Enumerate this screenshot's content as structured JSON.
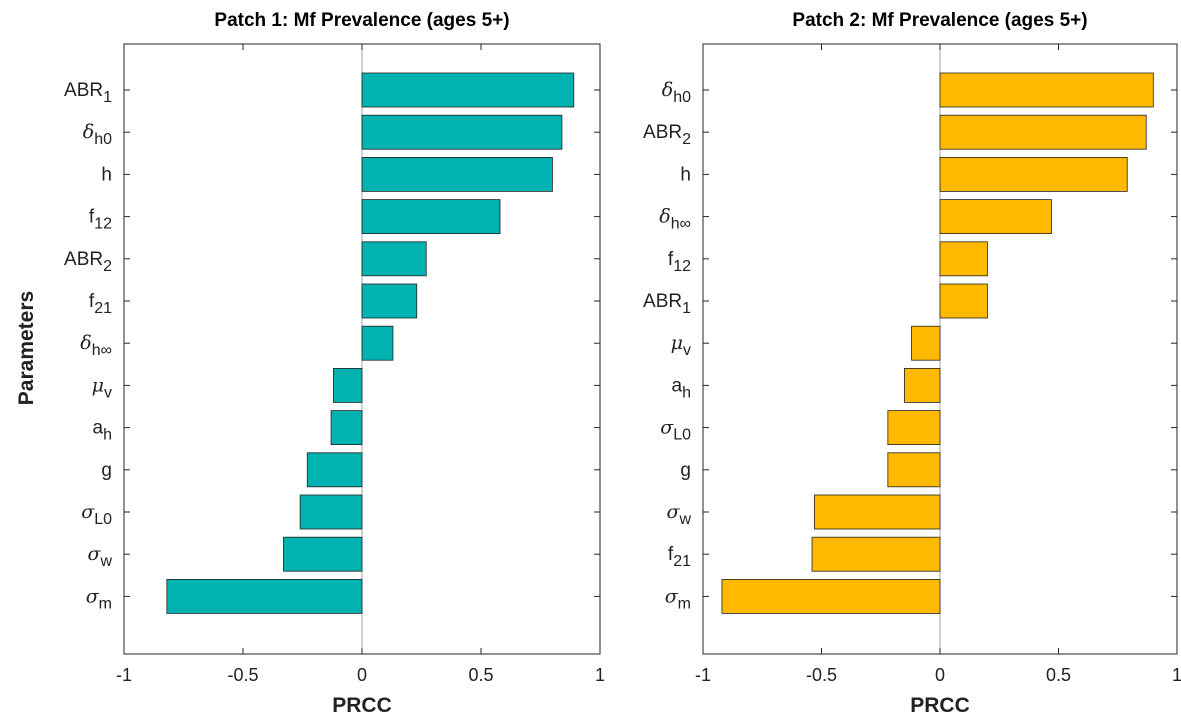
{
  "figure": {
    "ylabel": "Parameters"
  },
  "chart_data": [
    {
      "type": "bar",
      "orientation": "horizontal",
      "title": "Patch 1: Mf Prevalence (ages 5+)",
      "xlabel": "PRCC",
      "ylabel": "Parameters",
      "xlim": [
        -1,
        1
      ],
      "xticks": [
        "-1",
        "-0.5",
        "0",
        "0.5",
        "1"
      ],
      "bar_color": "#00b2b0",
      "grid": false,
      "categories": [
        {
          "base": "ABR",
          "greek": false,
          "sub": "1"
        },
        {
          "base": "δ",
          "greek": true,
          "sub": "h0"
        },
        {
          "base": "h",
          "greek": false,
          "sub": ""
        },
        {
          "base": "f",
          "greek": false,
          "sub": "12"
        },
        {
          "base": "ABR",
          "greek": false,
          "sub": "2"
        },
        {
          "base": "f",
          "greek": false,
          "sub": "21"
        },
        {
          "base": "δ",
          "greek": true,
          "sub": "h∞"
        },
        {
          "base": "μ",
          "greek": true,
          "sub": "v"
        },
        {
          "base": "a",
          "greek": false,
          "sub": "h"
        },
        {
          "base": "g",
          "greek": false,
          "sub": ""
        },
        {
          "base": "σ",
          "greek": true,
          "sub": "L0"
        },
        {
          "base": "σ",
          "greek": true,
          "sub": "w"
        },
        {
          "base": "σ",
          "greek": true,
          "sub": "m"
        }
      ],
      "values": [
        0.89,
        0.84,
        0.8,
        0.58,
        0.27,
        0.23,
        0.13,
        -0.12,
        -0.13,
        -0.23,
        -0.26,
        -0.33,
        -0.82
      ]
    },
    {
      "type": "bar",
      "orientation": "horizontal",
      "title": "Patch 2: Mf Prevalence (ages 5+)",
      "xlabel": "PRCC",
      "ylabel": "",
      "xlim": [
        -1,
        1
      ],
      "xticks": [
        "-1",
        "-0.5",
        "0",
        "0.5",
        "1"
      ],
      "bar_color": "#ffba00",
      "grid": false,
      "categories": [
        {
          "base": "δ",
          "greek": true,
          "sub": "h0"
        },
        {
          "base": "ABR",
          "greek": false,
          "sub": "2"
        },
        {
          "base": "h",
          "greek": false,
          "sub": ""
        },
        {
          "base": "δ",
          "greek": true,
          "sub": "h∞"
        },
        {
          "base": "f",
          "greek": false,
          "sub": "12"
        },
        {
          "base": "ABR",
          "greek": false,
          "sub": "1"
        },
        {
          "base": "μ",
          "greek": true,
          "sub": "v"
        },
        {
          "base": "a",
          "greek": false,
          "sub": "h"
        },
        {
          "base": "σ",
          "greek": true,
          "sub": "L0"
        },
        {
          "base": "g",
          "greek": false,
          "sub": ""
        },
        {
          "base": "σ",
          "greek": true,
          "sub": "w"
        },
        {
          "base": "f",
          "greek": false,
          "sub": "21"
        },
        {
          "base": "σ",
          "greek": true,
          "sub": "m"
        }
      ],
      "values": [
        0.9,
        0.87,
        0.79,
        0.47,
        0.2,
        0.2,
        -0.12,
        -0.15,
        -0.22,
        -0.22,
        -0.53,
        -0.54,
        -0.92
      ]
    }
  ]
}
